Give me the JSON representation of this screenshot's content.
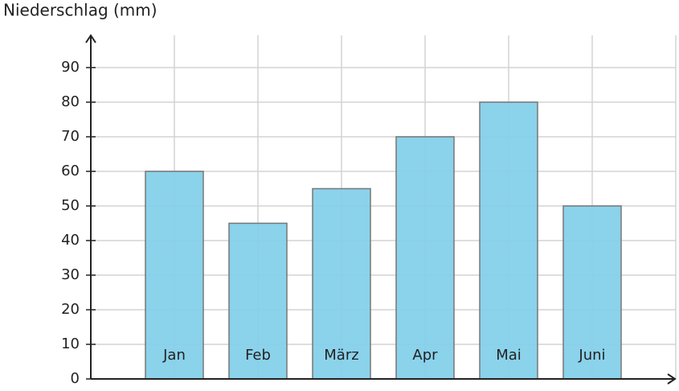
{
  "chart_data": {
    "type": "bar",
    "y_label": "Niederschlag (mm)",
    "categories": [
      "Jan",
      "Feb",
      "März",
      "Apr",
      "Mai",
      "Juni"
    ],
    "values": [
      60,
      45,
      55,
      70,
      80,
      50
    ],
    "color": "#85d0ea",
    "ylim": [
      0,
      100
    ],
    "yticks": [
      0,
      10,
      20,
      30,
      40,
      50,
      60,
      70,
      80,
      90
    ],
    "grid": true
  }
}
